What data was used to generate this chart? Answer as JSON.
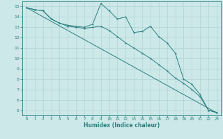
{
  "xlabel": "Humidex (Indice chaleur)",
  "xlim": [
    -0.5,
    23.5
  ],
  "ylim": [
    4.5,
    15.5
  ],
  "xticks": [
    0,
    1,
    2,
    3,
    4,
    5,
    6,
    7,
    8,
    9,
    10,
    11,
    12,
    13,
    14,
    15,
    16,
    17,
    18,
    19,
    20,
    21,
    22,
    23
  ],
  "yticks": [
    5,
    6,
    7,
    8,
    9,
    10,
    11,
    12,
    13,
    14,
    15
  ],
  "bg_color": "#cce8e8",
  "grid_color": "#aacfcf",
  "line_color": "#2a7f7f",
  "line1_x": [
    0,
    1,
    2,
    3,
    4,
    5,
    6,
    7,
    8,
    9,
    10,
    11,
    12,
    13,
    14,
    15,
    16,
    17,
    18,
    19,
    20,
    21,
    22,
    23
  ],
  "line1_y": [
    14.9,
    14.7,
    14.6,
    13.8,
    13.4,
    13.2,
    13.1,
    13.0,
    13.3,
    15.3,
    14.6,
    13.8,
    14.0,
    12.5,
    12.6,
    13.1,
    12.1,
    11.5,
    10.5,
    8.0,
    7.5,
    6.5,
    5.0,
    4.8
  ],
  "line2_x": [
    0,
    23
  ],
  "line2_y": [
    14.9,
    4.75
  ],
  "line3_x": [
    0,
    1,
    2,
    3,
    4,
    5,
    6,
    7,
    8,
    9,
    10,
    11,
    12,
    13,
    14,
    15,
    16,
    17,
    18,
    19,
    20,
    21,
    22,
    23
  ],
  "line3_y": [
    14.9,
    14.7,
    14.6,
    13.8,
    13.4,
    13.1,
    13.0,
    12.9,
    13.0,
    13.1,
    12.7,
    12.1,
    11.5,
    11.0,
    10.5,
    10.0,
    9.4,
    8.8,
    8.1,
    7.6,
    7.0,
    6.3,
    5.0,
    4.75
  ]
}
